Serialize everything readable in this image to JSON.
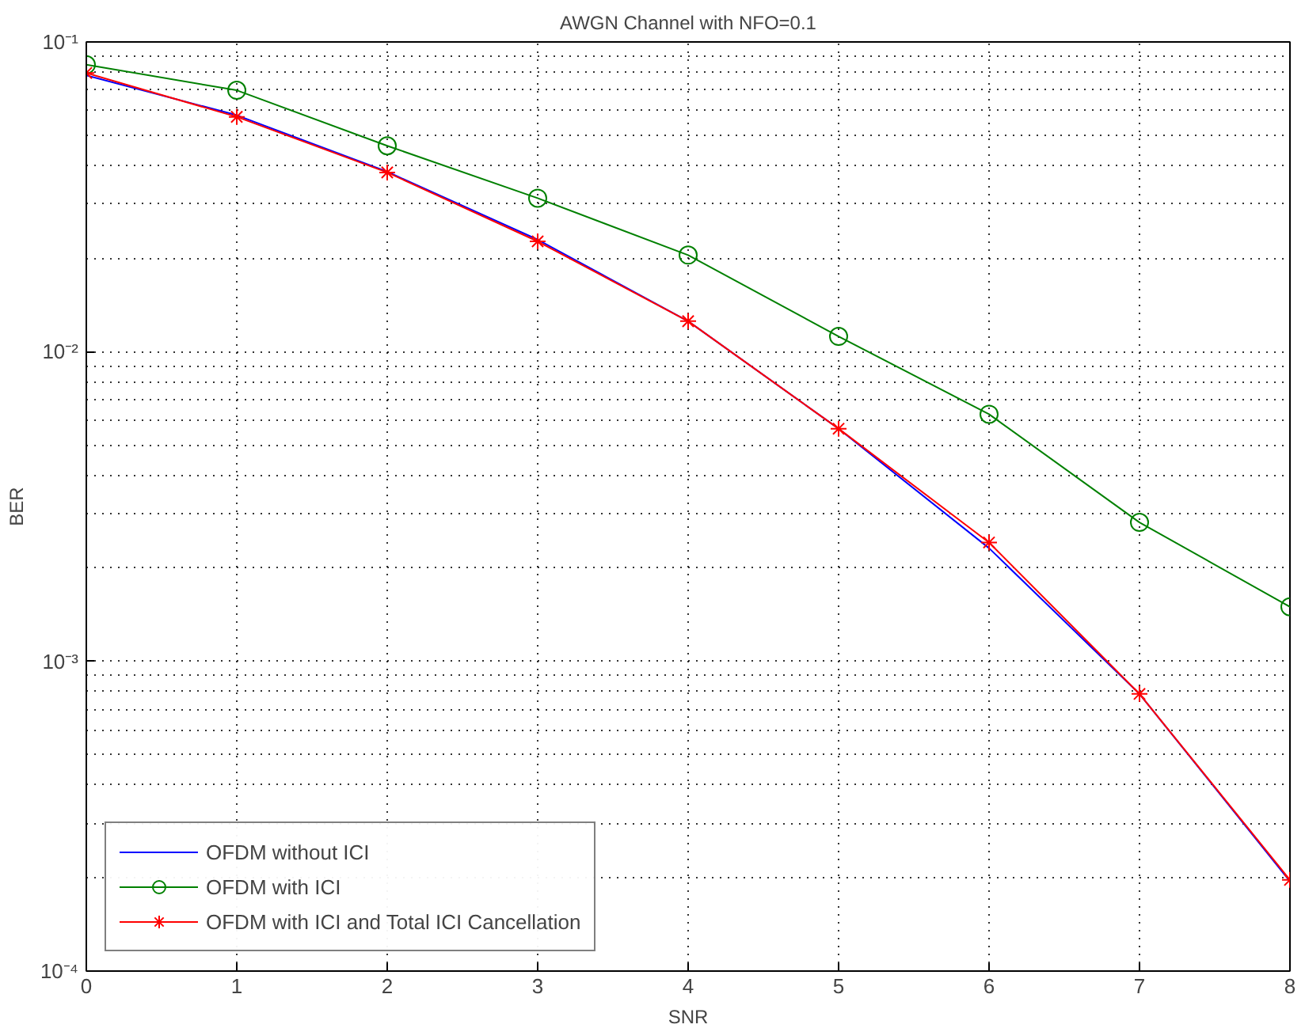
{
  "chart_data": {
    "type": "line",
    "title": "AWGN Channel with NFO=0.1",
    "xlabel": "SNR",
    "ylabel": "BER",
    "log": "y",
    "grid": true,
    "legend": "bottom left",
    "x": [
      0,
      1,
      2,
      3,
      4,
      5,
      6,
      7,
      8
    ],
    "xlim": [
      0,
      8
    ],
    "xticks": [
      0,
      1,
      2,
      3,
      4,
      5,
      6,
      7,
      8
    ],
    "ylim": [
      0.0001,
      0.1
    ],
    "yticks": [
      {
        "value": 0.0001,
        "label": "10⁻⁴"
      },
      {
        "value": 0.001,
        "label": "10⁻³"
      },
      {
        "value": 0.01,
        "label": "10⁻²"
      },
      {
        "value": 0.1,
        "label": "10⁻¹"
      }
    ],
    "series": [
      {
        "name": "OFDM without ICI",
        "color": "#0000ff",
        "marker": "none",
        "values": [
          0.078,
          0.058,
          0.0381,
          0.023,
          0.01254,
          0.00564,
          0.00232,
          0.000785,
          0.000195
        ]
      },
      {
        "name": "OFDM with ICI",
        "color": "#008000",
        "marker": "circle",
        "values": [
          0.0844,
          0.0698,
          0.0462,
          0.0313,
          0.0205,
          0.0112,
          0.00628,
          0.00281,
          0.0015
        ]
      },
      {
        "name": "OFDM with ICI and Total ICI Cancellation",
        "color": "#ff0000",
        "marker": "cross",
        "values": [
          0.0794,
          0.0573,
          0.0379,
          0.0227,
          0.01254,
          0.00564,
          0.00242,
          0.000785,
          0.000197
        ]
      }
    ]
  }
}
